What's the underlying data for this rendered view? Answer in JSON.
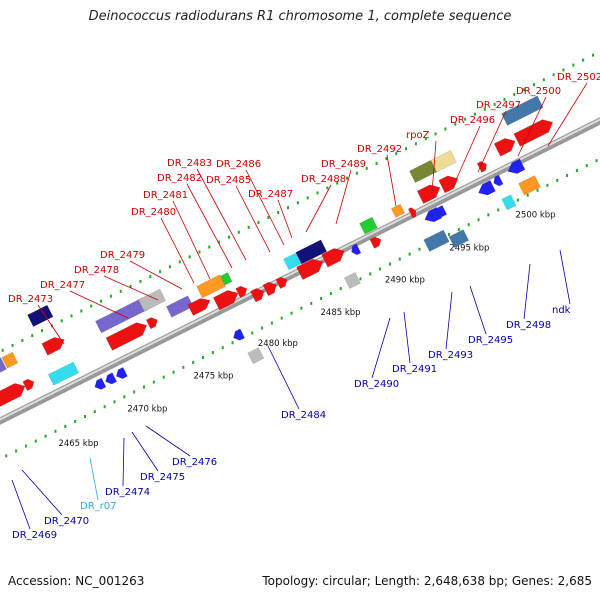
{
  "title": "Deinococcus radiodurans R1 chromosome 1, complete sequence",
  "footer": {
    "accession": "Accession: NC_001263",
    "info": "Topology: circular; Length: 2,648,638 bp; Genes: 2,685"
  },
  "colors": {
    "red": "#ee1111",
    "blue": "#2222ee",
    "navy": "#111177",
    "purple": "#7766cc",
    "gray": "#bbbbbb",
    "orange": "#ff9922",
    "green": "#22cc33",
    "olive": "#778833",
    "khaki": "#eedd99",
    "cyan": "#33ddee",
    "steel": "#4477aa",
    "rna": "#33aadd",
    "label_red": "#cc0000",
    "label_blue": "#0000aa",
    "label_cyan": "#33aadd",
    "tick": "#22aa22",
    "backbone": "#999999"
  },
  "axis": {
    "unit": "kbp",
    "ticks": [
      2465,
      2470,
      2475,
      2480,
      2485,
      2490,
      2495,
      2500
    ],
    "tick_labels": [
      "2465 kbp",
      "2470 kbp",
      "2475 kbp",
      "2480 kbp",
      "2485 kbp",
      "2490 kbp",
      "2495 kbp",
      "2500 kbp"
    ]
  },
  "labels_top": [
    {
      "text": "DR_2473"
    },
    {
      "text": "DR_2477"
    },
    {
      "text": "DR_2478"
    },
    {
      "text": "DR_2479"
    },
    {
      "text": "DR_2480"
    },
    {
      "text": "DR_2481"
    },
    {
      "text": "DR_2482"
    },
    {
      "text": "DR_2483"
    },
    {
      "text": "DR_2485"
    },
    {
      "text": "DR_2486"
    },
    {
      "text": "DR_2487"
    },
    {
      "text": "DR_2488"
    },
    {
      "text": "DR_2489"
    },
    {
      "text": "DR_2492"
    },
    {
      "text": "rpoZ"
    },
    {
      "text": "DR_2496"
    },
    {
      "text": "DR_2497"
    },
    {
      "text": "DR_2500"
    },
    {
      "text": "DR_2502"
    }
  ],
  "labels_bottom": [
    {
      "text": "DR_2469"
    },
    {
      "text": "DR_2470"
    },
    {
      "text": "DR_r07"
    },
    {
      "text": "DR_2474"
    },
    {
      "text": "DR_2475"
    },
    {
      "text": "DR_2476"
    },
    {
      "text": "DR_2484"
    },
    {
      "text": "DR_2490"
    },
    {
      "text": "DR_2491"
    },
    {
      "text": "DR_2493"
    },
    {
      "text": "DR_2495"
    },
    {
      "text": "DR_2498"
    },
    {
      "text": "ndk"
    }
  ]
}
